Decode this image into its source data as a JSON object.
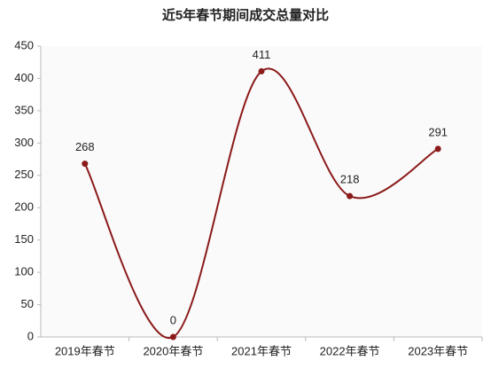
{
  "chart_data": {
    "type": "line",
    "title": "近5年春节期间成交总量对比",
    "categories": [
      "2019年春节",
      "2020年春节",
      "2021年春节",
      "2022年春节",
      "2023年春节"
    ],
    "values": [
      268,
      0,
      411,
      218,
      291
    ],
    "color": "#8b1a1a",
    "ylim": [
      0,
      450
    ],
    "yticks": [
      0,
      50,
      100,
      150,
      200,
      250,
      300,
      350,
      400,
      450
    ],
    "smooth": true
  }
}
